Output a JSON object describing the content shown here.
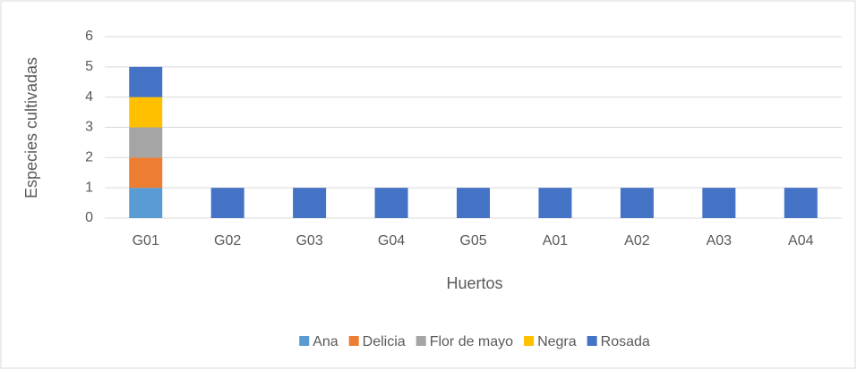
{
  "chart_data": {
    "type": "stacked_bar",
    "categories": [
      "G01",
      "G02",
      "G03",
      "G04",
      "G05",
      "A01",
      "A02",
      "A03",
      "A04"
    ],
    "series": [
      {
        "name": "Ana",
        "color": "#5b9bd5",
        "values": [
          1,
          0,
          0,
          0,
          0,
          0,
          0,
          0,
          0
        ]
      },
      {
        "name": "Delicia",
        "color": "#ed7d31",
        "values": [
          1,
          0,
          0,
          0,
          0,
          0,
          0,
          0,
          0
        ]
      },
      {
        "name": "Flor de mayo",
        "color": "#a5a5a5",
        "values": [
          1,
          0,
          0,
          0,
          0,
          0,
          0,
          0,
          0
        ]
      },
      {
        "name": "Negra",
        "color": "#ffc000",
        "values": [
          1,
          0,
          0,
          0,
          0,
          0,
          0,
          0,
          0
        ]
      },
      {
        "name": "Rosada",
        "color": "#4472c4",
        "values": [
          1,
          1,
          1,
          1,
          1,
          1,
          1,
          1,
          1
        ]
      }
    ],
    "xlabel": "Huertos",
    "ylabel": "Especies cultivadas",
    "ylim": [
      0,
      6
    ],
    "yticks": [
      0,
      1,
      2,
      3,
      4,
      5,
      6
    ],
    "grid": true,
    "legend": "bottom"
  }
}
